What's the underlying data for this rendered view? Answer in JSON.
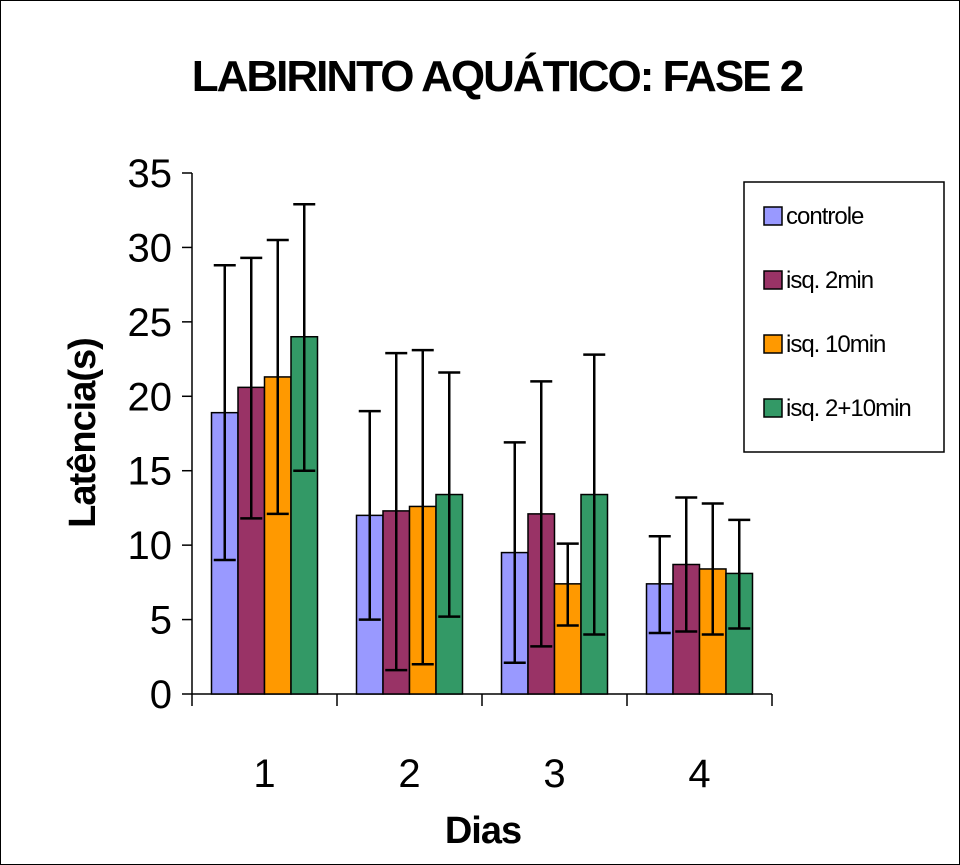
{
  "chart_data": {
    "type": "bar",
    "title": "LABIRINTO AQUÁTICO: FASE 2",
    "xlabel": "Dias",
    "ylabel": "Latência(s)",
    "ylim": [
      0,
      35
    ],
    "yticks": [
      0,
      5,
      10,
      15,
      20,
      25,
      30,
      35
    ],
    "categories": [
      "1",
      "2",
      "3",
      "4"
    ],
    "legend_position": "right",
    "grid": false,
    "series": [
      {
        "name": "controle",
        "color": "#9999ff",
        "values": [
          18.9,
          12.0,
          9.5,
          7.4
        ],
        "err_low": [
          9.0,
          5.0,
          2.1,
          4.1
        ],
        "err_high": [
          28.8,
          19.0,
          16.9,
          10.6
        ]
      },
      {
        "name": "isq. 2min",
        "color": "#993366",
        "values": [
          20.6,
          12.3,
          12.1,
          8.7
        ],
        "err_low": [
          11.8,
          1.6,
          3.2,
          4.2
        ],
        "err_high": [
          29.3,
          22.9,
          21.0,
          13.2
        ]
      },
      {
        "name": "isq. 10min",
        "color": "#ff9900",
        "values": [
          21.3,
          12.6,
          7.4,
          8.4
        ],
        "err_low": [
          12.1,
          2.0,
          4.6,
          4.0
        ],
        "err_high": [
          30.5,
          23.1,
          10.1,
          12.8
        ]
      },
      {
        "name": "isq. 2+10min",
        "color": "#339966",
        "values": [
          24.0,
          13.4,
          13.4,
          8.1
        ],
        "err_low": [
          15.0,
          5.2,
          4.0,
          4.4
        ],
        "err_high": [
          32.9,
          21.6,
          22.8,
          11.7
        ]
      }
    ]
  }
}
